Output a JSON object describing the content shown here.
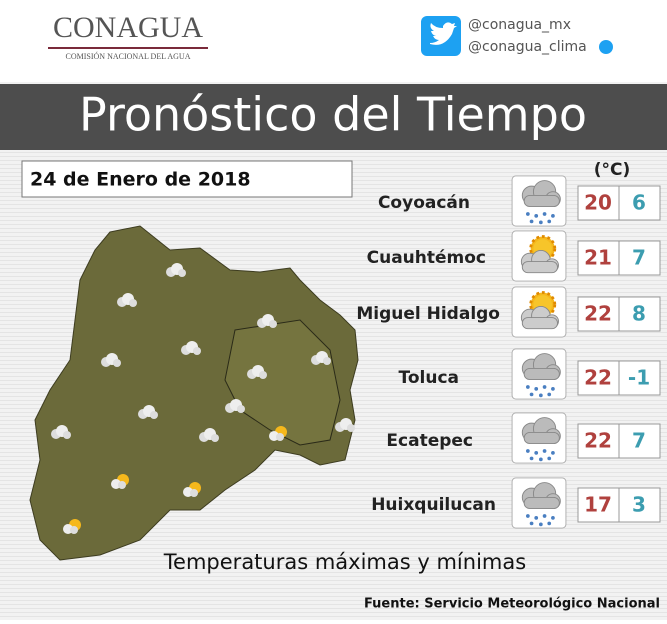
{
  "header": {
    "logo_title": "CONAGUA",
    "logo_subtitle": "COMISIÓN NACIONAL DEL AGUA",
    "social": [
      "@conagua_mx",
      "@conagua_clima"
    ]
  },
  "title": "Pronóstico del Tiempo",
  "date": "24 de Enero de 2018",
  "unit": "(°C)",
  "rows": [
    {
      "city": "Coyoacán",
      "max": 20,
      "min": 6
    },
    {
      "city": "Cuauhtémoc",
      "max": 21,
      "min": 7
    },
    {
      "city": "Miguel Hidalgo",
      "max": 22,
      "min": 8
    },
    {
      "city": "Toluca",
      "max": 22,
      "min": -1
    },
    {
      "city": "Ecatepec",
      "max": 22,
      "min": 7
    },
    {
      "city": "Huixquilucan",
      "max": 17,
      "min": 3
    }
  ],
  "footer": {
    "subtitle": "Temperaturas máximas y mínimas",
    "source": "Fuente: Servicio Meteorológico Nacional"
  }
}
